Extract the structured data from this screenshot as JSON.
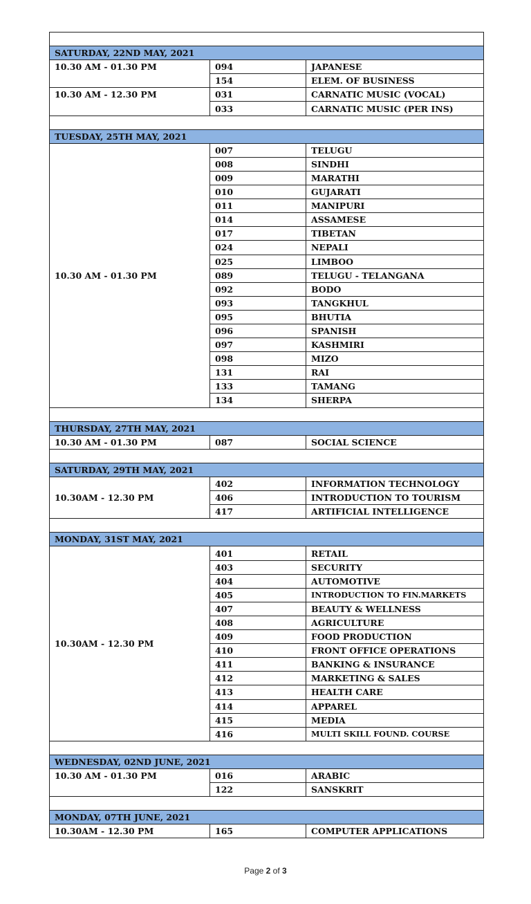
{
  "sections": [
    {
      "date": "SATURDAY, 22ND MAY, 2021",
      "groups": [
        {
          "time": "10.30 AM - 01.30 PM",
          "subjects": [
            {
              "code": "094",
              "name": "JAPANESE"
            },
            {
              "code": "154",
              "name": "ELEM. OF BUSINESS"
            }
          ]
        },
        {
          "time": "10.30 AM - 12.30 PM",
          "subjects": [
            {
              "code": "031",
              "name": "CARNATIC MUSIC (VOCAL)"
            },
            {
              "code": "033",
              "name": "CARNATIC MUSIC (PER INS)"
            }
          ]
        }
      ]
    },
    {
      "date": "TUESDAY, 25TH MAY, 2021",
      "groups": [
        {
          "time": "10.30 AM - 01.30 PM",
          "subjects": [
            {
              "code": "007",
              "name": "TELUGU"
            },
            {
              "code": "008",
              "name": "SINDHI"
            },
            {
              "code": "009",
              "name": "MARATHI"
            },
            {
              "code": "010",
              "name": "GUJARATI"
            },
            {
              "code": "011",
              "name": "MANIPURI"
            },
            {
              "code": "014",
              "name": "ASSAMESE"
            },
            {
              "code": "017",
              "name": "TIBETAN"
            },
            {
              "code": "024",
              "name": "NEPALI"
            },
            {
              "code": "025",
              "name": "LIMBOO"
            },
            {
              "code": "089",
              "name": "TELUGU - TELANGANA"
            },
            {
              "code": "092",
              "name": "BODO"
            },
            {
              "code": "093",
              "name": "TANGKHUL"
            },
            {
              "code": "095",
              "name": "BHUTIA"
            },
            {
              "code": "096",
              "name": "SPANISH"
            },
            {
              "code": "097",
              "name": "KASHMIRI"
            },
            {
              "code": "098",
              "name": "MIZO"
            },
            {
              "code": "131",
              "name": "RAI"
            },
            {
              "code": "133",
              "name": "TAMANG"
            },
            {
              "code": "134",
              "name": "SHERPA"
            }
          ]
        }
      ]
    },
    {
      "date": "THURSDAY, 27TH MAY, 2021",
      "groups": [
        {
          "time": "10.30 AM - 01.30 PM",
          "subjects": [
            {
              "code": "087",
              "name": "SOCIAL SCIENCE"
            }
          ]
        }
      ]
    },
    {
      "date": "SATURDAY, 29TH MAY, 2021",
      "groups": [
        {
          "time": "10.30AM - 12.30 PM",
          "subjects": [
            {
              "code": "402",
              "name": "INFORMATION TECHNOLOGY"
            },
            {
              "code": "406",
              "name": "INTRODUCTION TO TOURISM"
            },
            {
              "code": "417",
              "name": "ARTIFICIAL INTELLIGENCE"
            }
          ]
        }
      ]
    },
    {
      "date": "MONDAY, 31ST MAY, 2021",
      "groups": [
        {
          "time": "10.30AM - 12.30 PM",
          "subjects": [
            {
              "code": "401",
              "name": "RETAIL"
            },
            {
              "code": "403",
              "name": "SECURITY"
            },
            {
              "code": "404",
              "name": "AUTOMOTIVE"
            },
            {
              "code": "405",
              "name": "INTRODUCTION TO FIN.MARKETS"
            },
            {
              "code": "407",
              "name": "BEAUTY & WELLNESS"
            },
            {
              "code": "408",
              "name": "AGRICULTURE"
            },
            {
              "code": "409",
              "name": "FOOD PRODUCTION"
            },
            {
              "code": "410",
              "name": "FRONT OFFICE OPERATIONS"
            },
            {
              "code": "411",
              "name": "BANKING & INSURANCE"
            },
            {
              "code": "412",
              "name": "MARKETING & SALES"
            },
            {
              "code": "413",
              "name": "HEALTH  CARE"
            },
            {
              "code": "414",
              "name": "APPAREL"
            },
            {
              "code": "415",
              "name": "MEDIA"
            },
            {
              "code": "416",
              "name": "MULTI SKILL FOUND. COURSE"
            }
          ]
        }
      ]
    },
    {
      "date": "WEDNESDAY, 02ND JUNE, 2021",
      "groups": [
        {
          "time": "10.30 AM - 01.30 PM",
          "subjects": [
            {
              "code": "016",
              "name": "ARABIC"
            },
            {
              "code": "122",
              "name": "SANSKRIT"
            }
          ]
        }
      ]
    },
    {
      "date": "MONDAY, 07TH JUNE, 2021",
      "groups": [
        {
          "time": "10.30AM - 12.30 PM",
          "subjects": [
            {
              "code": "165",
              "name": "COMPUTER APPLICATIONS"
            }
          ]
        }
      ]
    }
  ],
  "footer": {
    "prefix": "Page ",
    "page": "2",
    "middle": " of ",
    "total": "3"
  },
  "colors": {
    "header_bg": "#8db3e2"
  }
}
